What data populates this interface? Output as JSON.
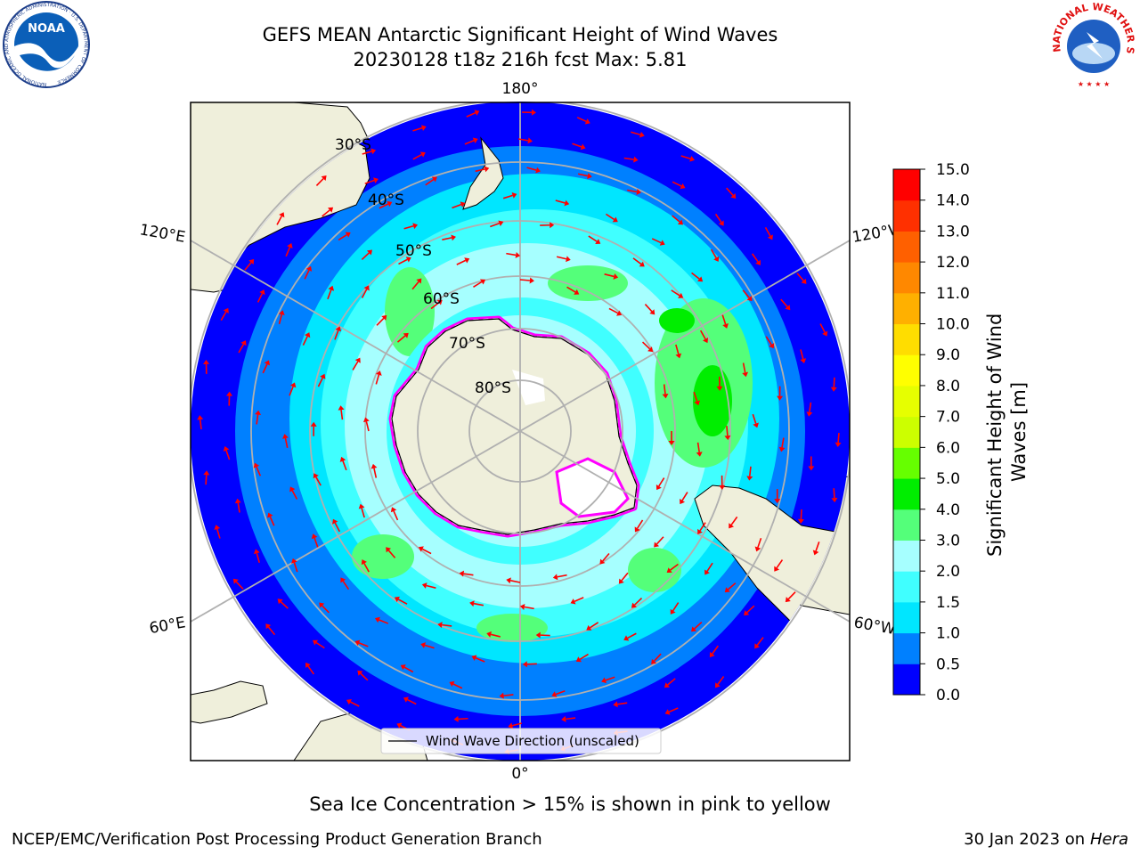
{
  "header": {
    "title": "GEFS MEAN Antarctic Significant Height of Wind Waves",
    "subtitle": "20230128 t18z 216h fcst   Max: 5.81"
  },
  "logos": {
    "left": {
      "name": "NOAA",
      "ring_text": "NATIONAL OCEANIC AND ATMOSPHERIC ADMINISTRATION",
      "bottom_text": "U.S. DEPARTMENT OF COMMERCE"
    },
    "right": {
      "ring_text": "NATIONAL WEATHER SERVICE"
    }
  },
  "map": {
    "projection": "south-polar-stereographic",
    "meridian_labels": {
      "top": "180°",
      "bottom": "0°",
      "upper_left": "120°E",
      "upper_right": "120°W",
      "lower_left": "60°E",
      "lower_right": "60°W"
    },
    "parallel_labels": [
      "30°S",
      "40°S",
      "50°S",
      "60°S",
      "70°S",
      "80°S"
    ],
    "legend_label": "Wind Wave Direction (unscaled)",
    "colors": {
      "land": "#efefdb",
      "grid": "#b0b0b0",
      "ice_edge": "#ff00ff",
      "arrows": "#ff0000"
    }
  },
  "colorbar": {
    "label": "Significant Height of Wind Waves [m]",
    "ticks": [
      "0.0",
      "0.5",
      "1.0",
      "1.5",
      "2.0",
      "3.0",
      "4.0",
      "5.0",
      "6.0",
      "7.0",
      "8.0",
      "9.0",
      "10.0",
      "11.0",
      "12.0",
      "13.0",
      "14.0",
      "15.0"
    ],
    "colors": [
      "#0000ff",
      "#0080ff",
      "#00e6ff",
      "#40ffff",
      "#a6ffff",
      "#54ff7a",
      "#00ee00",
      "#66ff00",
      "#ccff00",
      "#e6ff00",
      "#ffff00",
      "#ffdd00",
      "#ffb000",
      "#ff8800",
      "#ff6000",
      "#ff3000",
      "#ff0000"
    ]
  },
  "captions": {
    "sea_ice": "Sea Ice Concentration > 15% is shown in pink to yellow",
    "footer_left": "NCEP/EMC/Verification Post Processing Product Generation Branch",
    "footer_date": "30 Jan 2023 on",
    "footer_machine": "Hera"
  }
}
